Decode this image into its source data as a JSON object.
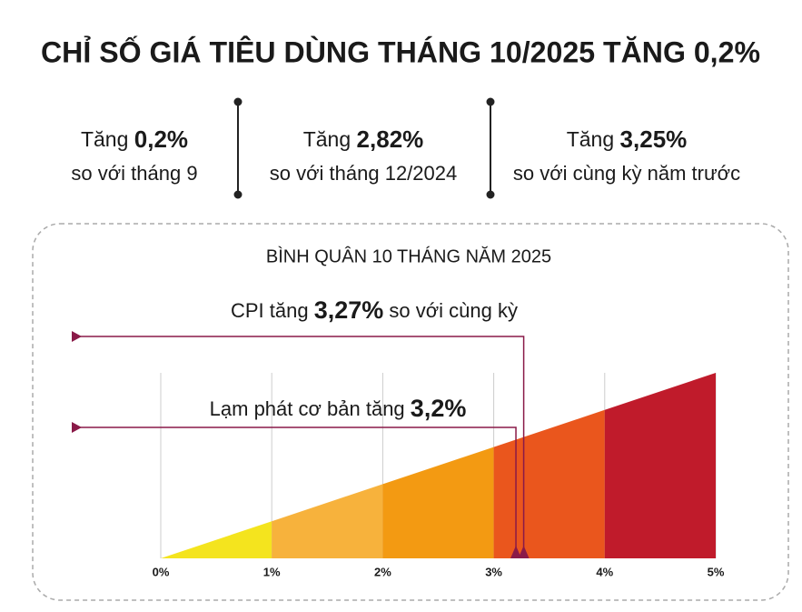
{
  "title": "CHỈ SỐ GIÁ TIÊU DÙNG THÁNG 10/2025 TĂNG 0,2%",
  "highlights": [
    {
      "prefix": "Tăng",
      "value": "0,2%",
      "text": "so với tháng 9"
    },
    {
      "prefix": "Tăng",
      "value": "2,82%",
      "text": "so với tháng 12/2024"
    },
    {
      "prefix": "Tăng",
      "value": "3,25%",
      "text": "so với cùng kỳ năm trước"
    }
  ],
  "chart_data": {
    "type": "ramp",
    "title": "BÌNH QUÂN 10 THÁNG NĂM 2025",
    "xlim": [
      0,
      5
    ],
    "xticks": [
      {
        "value": 0,
        "label": "0%"
      },
      {
        "value": 1,
        "label": "1%"
      },
      {
        "value": 2,
        "label": "2%"
      },
      {
        "value": 3,
        "label": "3%"
      },
      {
        "value": 4,
        "label": "4%"
      },
      {
        "value": 5,
        "label": "5%"
      }
    ],
    "colors": [
      "#f4e41e",
      "#f7b23c",
      "#f39a12",
      "#ea561d",
      "#c01b2b"
    ],
    "marker_color": "#8a1a48",
    "markers": [
      {
        "prefix": "CPI tăng",
        "value": 3.27,
        "value_label": "3,27%",
        "suffix": "so với cùng kỳ"
      },
      {
        "prefix": "Lạm phát cơ bản tăng",
        "value": 3.2,
        "value_label": "3,2%",
        "suffix": ""
      }
    ],
    "grid": true
  }
}
